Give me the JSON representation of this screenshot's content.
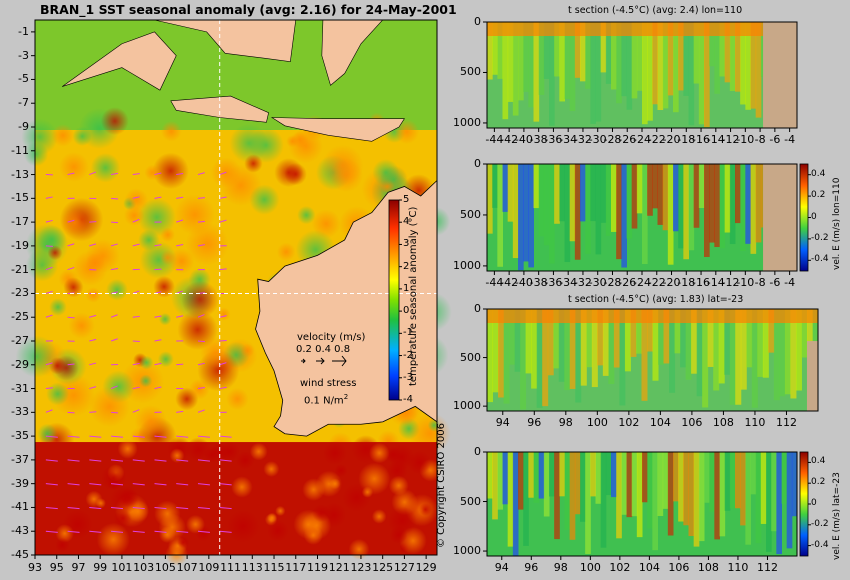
{
  "map": {
    "title": "BRAN_1 SST seasonal anomaly (avg: 2.16) for 24-May-2001",
    "xticks": [
      "93",
      "95",
      "97",
      "99",
      "101",
      "103",
      "105",
      "107",
      "109",
      "111",
      "113",
      "115",
      "117",
      "119",
      "121",
      "123",
      "125",
      "127",
      "129"
    ],
    "yticks": [
      "-1",
      "-3",
      "-5",
      "-7",
      "-9",
      "-11",
      "-13",
      "-15",
      "-17",
      "-19",
      "-21",
      "-23",
      "-25",
      "-27",
      "-29",
      "-31",
      "-33",
      "-35",
      "-37",
      "-39",
      "-41",
      "-43",
      "-45"
    ],
    "colorbar_label": "temperature seasonal anomaly (°C)",
    "colorbar_ticks": [
      "5",
      "4",
      "3",
      "2",
      "1",
      "0",
      "-1",
      "-2",
      "-3",
      "-4"
    ],
    "velocity_label": "velocity (m/s)",
    "velocity_values": "0.2 0.4 0.8",
    "wind_label": "wind stress",
    "wind_value": "0.1 N/m",
    "wind_unit_sup": "2",
    "copyright": "© Copyright CSIRO 2006"
  },
  "panels": [
    {
      "title": "t section (-4.5°C) (avg: 2.4) lon=110",
      "xticks": [
        "-44",
        "-42",
        "-40",
        "-38",
        "-36",
        "-34",
        "-32",
        "-30",
        "-28",
        "-26",
        "-24",
        "-22",
        "-20",
        "-18",
        "-16",
        "-14",
        "-12",
        "-10",
        "-8",
        "-6",
        "-4"
      ],
      "yticks": [
        "0",
        "500",
        "1000"
      ],
      "colorbar_label": "",
      "colorbar_ticks": []
    },
    {
      "title": "",
      "xticks": [
        "-44",
        "-42",
        "-40",
        "-38",
        "-36",
        "-34",
        "-32",
        "-30",
        "-28",
        "-26",
        "-24",
        "-22",
        "-20",
        "-18",
        "-16",
        "-14",
        "-12",
        "-10",
        "-8",
        "-6",
        "-4"
      ],
      "yticks": [
        "0",
        "500",
        "1000"
      ],
      "colorbar_label": "vel. E (m/s) lon=110",
      "colorbar_ticks": [
        "0.4",
        "0.2",
        "0",
        "-0.2",
        "-0.4"
      ]
    },
    {
      "title": "t section (-4.5°C) (avg: 1.83) lat=-23",
      "xticks": [
        "94",
        "96",
        "98",
        "100",
        "102",
        "104",
        "106",
        "108",
        "110",
        "112"
      ],
      "yticks": [
        "0",
        "500",
        "1000"
      ],
      "colorbar_label": "",
      "colorbar_ticks": []
    },
    {
      "title": "",
      "xticks": [
        "94",
        "96",
        "98",
        "100",
        "102",
        "104",
        "106",
        "108",
        "110",
        "112"
      ],
      "yticks": [
        "0",
        "500",
        "1000"
      ],
      "colorbar_label": "vel. E (m/s) lat=-23",
      "colorbar_ticks": [
        "0.4",
        "0.2",
        "0",
        "-0.2",
        "-0.4"
      ]
    }
  ],
  "chart_data": [
    {
      "type": "heatmap",
      "title": "BRAN_1 SST seasonal anomaly (avg: 2.16) for 24-May-2001",
      "xlim": [
        93,
        130
      ],
      "ylim": [
        -45,
        0
      ],
      "colorbar_range": [
        -4,
        5
      ],
      "colorbar_label": "temperature seasonal anomaly (°C)"
    },
    {
      "type": "heatmap",
      "title": "t section (-4.5°C) (avg: 2.4) lon=110",
      "xlim": [
        -45,
        -3
      ],
      "ylim": [
        1050,
        0
      ]
    },
    {
      "type": "heatmap",
      "xlim": [
        -45,
        -3
      ],
      "ylim": [
        1050,
        0
      ],
      "colorbar_range": [
        -0.5,
        0.5
      ],
      "colorbar_label": "vel. E (m/s) lon=110"
    },
    {
      "type": "heatmap",
      "title": "t section (-4.5°C) (avg: 1.83) lat=-23",
      "xlim": [
        93,
        114
      ],
      "ylim": [
        1050,
        0
      ]
    },
    {
      "type": "heatmap",
      "xlim": [
        93,
        114
      ],
      "ylim": [
        1050,
        0
      ],
      "colorbar_range": [
        -0.5,
        0.5
      ],
      "colorbar_label": "vel. E (m/s) lat=-23"
    }
  ]
}
